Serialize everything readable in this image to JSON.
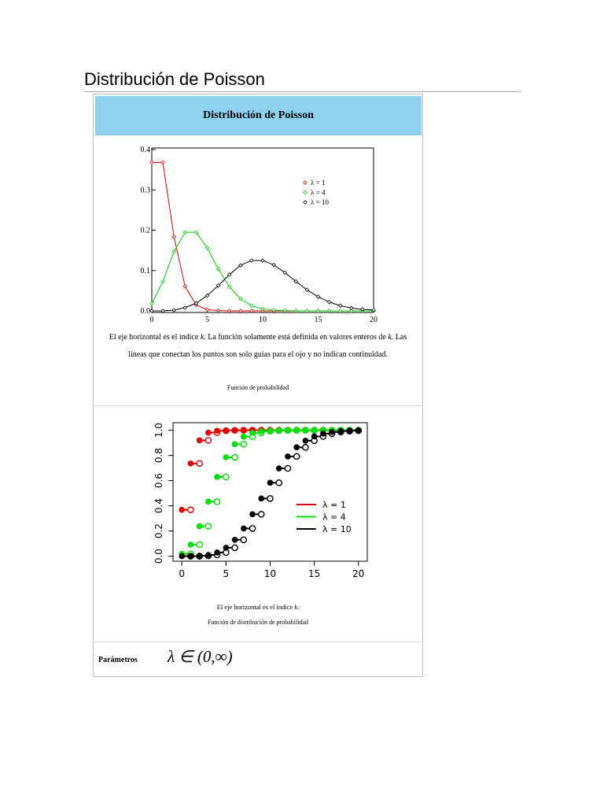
{
  "title": "Distribución de Poisson",
  "infobox": {
    "header": "Distribución de Poisson",
    "pmf_caption": [
      "El eje horizontal es el índice ",
      "k",
      ". La función solamente está definida en valores enteros de ",
      "k",
      ". Las líneas que conectan los puntos son solo guías para el ojo y no indican continuidad."
    ],
    "pmf_label": "Función de probabilidad",
    "cdf_caption": [
      "El eje horizontal es el índice ",
      "k",
      "."
    ],
    "cdf_label": "Función de distribución de probabilidad",
    "parameters": {
      "label": "Parámetros",
      "value": "λ ∈ (0,∞)"
    }
  },
  "chart_data": [
    {
      "type": "line",
      "legend": "upper right",
      "grid": false,
      "x": [
        0,
        1,
        2,
        3,
        4,
        5,
        6,
        7,
        8,
        9,
        10,
        11,
        12,
        13,
        14,
        15,
        16,
        17,
        18,
        19,
        20
      ],
      "xlim": [
        0,
        20
      ],
      "xticks": [
        0,
        5,
        10,
        15,
        20
      ],
      "ylim": [
        0,
        0.4
      ],
      "yticks": [
        {
          "value": 0,
          "label": "0.0"
        },
        0.1,
        0.2,
        0.3,
        0.4
      ],
      "series": [
        {
          "name": "λ = 1",
          "color": "#e00000",
          "values": [
            0.368,
            0.368,
            0.184,
            0.061,
            0.015,
            0.003,
            0.001,
            0,
            0,
            0,
            0,
            0,
            0,
            0,
            0,
            0,
            0,
            0,
            0,
            0,
            0
          ]
        },
        {
          "name": "λ = 4",
          "color": "#00d000",
          "values": [
            0.018,
            0.073,
            0.147,
            0.195,
            0.195,
            0.156,
            0.104,
            0.06,
            0.03,
            0.013,
            0.005,
            0.002,
            0.001,
            0,
            0,
            0,
            0,
            0,
            0,
            0,
            0
          ]
        },
        {
          "name": "λ = 10",
          "color": "#000000",
          "values": [
            0,
            0,
            0.002,
            0.008,
            0.019,
            0.038,
            0.063,
            0.09,
            0.113,
            0.125,
            0.125,
            0.114,
            0.095,
            0.073,
            0.052,
            0.035,
            0.022,
            0.013,
            0.007,
            0.004,
            0.002
          ]
        }
      ]
    },
    {
      "type": "step",
      "legend": "right",
      "grid": false,
      "x": [
        0,
        1,
        2,
        3,
        4,
        5,
        6,
        7,
        8,
        9,
        10,
        11,
        12,
        13,
        14,
        15,
        16,
        17,
        18,
        19,
        20
      ],
      "xlim": [
        -1,
        21
      ],
      "xticks": [
        0,
        5,
        10,
        15,
        20
      ],
      "ylim": [
        -0.04,
        1.06
      ],
      "yticks": [
        {
          "value": 0,
          "label": "0.0"
        },
        0.2,
        0.4,
        0.6,
        0.8,
        {
          "value": 1,
          "label": "1.0"
        }
      ],
      "series": [
        {
          "name": "λ = 1",
          "color": "#e00000",
          "values": [
            0.368,
            0.736,
            0.92,
            0.981,
            0.996,
            0.999,
            1,
            1,
            1,
            1,
            1,
            1,
            1,
            1,
            1,
            1,
            1,
            1,
            1,
            1,
            1
          ]
        },
        {
          "name": "λ = 4",
          "color": "#00e000",
          "values": [
            0.018,
            0.092,
            0.238,
            0.433,
            0.629,
            0.785,
            0.889,
            0.949,
            0.979,
            0.992,
            0.997,
            0.999,
            1,
            1,
            1,
            1,
            1,
            1,
            1,
            1,
            1
          ]
        },
        {
          "name": "λ = 10",
          "color": "#000000",
          "values": [
            0,
            0,
            0.003,
            0.01,
            0.029,
            0.067,
            0.13,
            0.22,
            0.333,
            0.458,
            0.583,
            0.697,
            0.792,
            0.864,
            0.917,
            0.951,
            0.973,
            0.986,
            0.993,
            0.997,
            0.998
          ]
        }
      ]
    }
  ]
}
